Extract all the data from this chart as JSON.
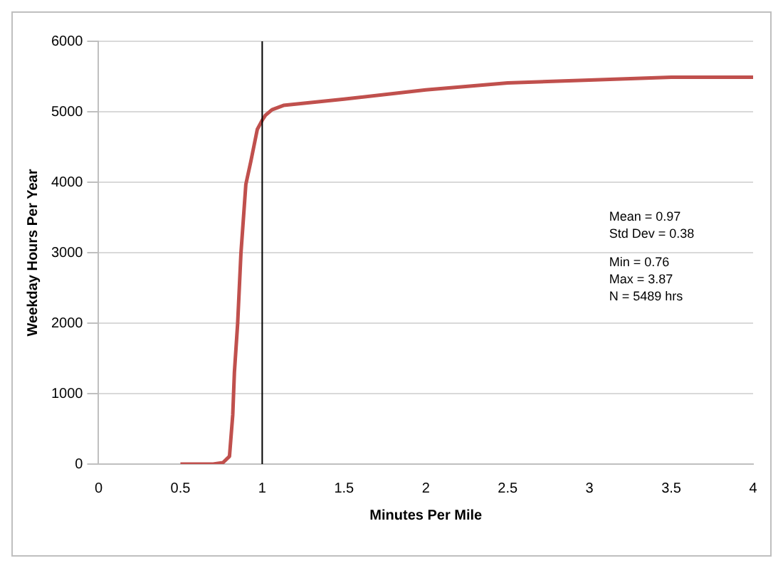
{
  "chart_data": {
    "type": "line",
    "xlabel": "Minutes Per Mile",
    "ylabel": "Weekday Hours Per Year",
    "x": [
      0.5,
      0.6,
      0.7,
      0.76,
      0.8,
      0.82,
      0.83,
      0.85,
      0.87,
      0.9,
      0.93,
      0.97,
      1.0,
      1.02,
      1.06,
      1.13,
      1.5,
      2.0,
      2.5,
      3.0,
      3.5,
      4.0
    ],
    "series": [
      {
        "color": "#c0504d",
        "values": [
          0,
          0,
          0,
          20,
          110,
          700,
          1300,
          2000,
          2990,
          3970,
          4290,
          4750,
          4880,
          4950,
          5030,
          5090,
          5180,
          5310,
          5410,
          5450,
          5490,
          5490
        ]
      }
    ],
    "xlim": [
      0,
      4
    ],
    "xticks": [
      0,
      0.5,
      1,
      1.5,
      2,
      2.5,
      3,
      3.5,
      4
    ],
    "ylim": [
      0,
      6000
    ],
    "yticks": [
      0,
      1000,
      2000,
      3000,
      4000,
      5000,
      6000
    ],
    "grid": "y",
    "legend": false,
    "marker": "none",
    "line_style": "solid",
    "ref_lines": [
      {
        "axis": "x",
        "value": 1,
        "color": "#000000"
      }
    ],
    "annotations": [
      "Mean = 0.97",
      "Std Dev = 0.38",
      "Min = 0.76",
      "Max = 3.87",
      "N = 5489 hrs"
    ]
  }
}
